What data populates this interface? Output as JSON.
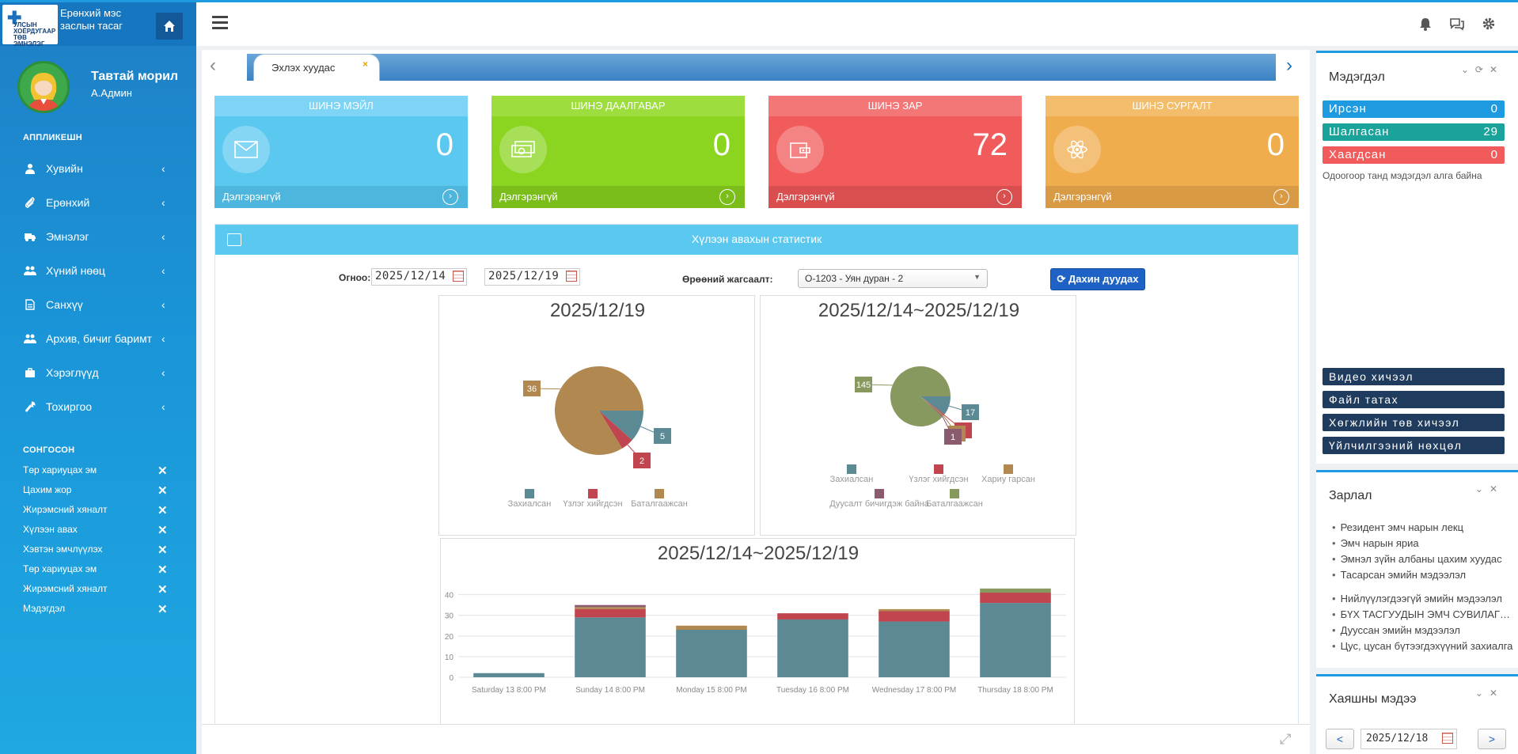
{
  "brand": {
    "title": "Ерөнхий мэс заслын тасаг",
    "logo_text": "УЛСЫН ХОЁРДУГААР ТӨВ ЭМНЭЛЭГ"
  },
  "user": {
    "welcome": "Тавтай морил",
    "name": "А.Админ"
  },
  "sidebar": {
    "section_title": "АППЛИКЕШН",
    "items": [
      {
        "label": "Хувийн",
        "icon": "user-icon"
      },
      {
        "label": "Ерөнхий",
        "icon": "paperclip-icon"
      },
      {
        "label": "Эмнэлэг",
        "icon": "ambulance-icon"
      },
      {
        "label": "Хүний нөөц",
        "icon": "users-icon"
      },
      {
        "label": "Санхүү",
        "icon": "document-icon"
      },
      {
        "label": "Архив, бичиг баримт",
        "icon": "users-icon"
      },
      {
        "label": "Хэрэглүүд",
        "icon": "briefcase-icon"
      },
      {
        "label": "Тохиргоо",
        "icon": "wrench-icon"
      }
    ],
    "favorites_title": "СОНГОСОН",
    "favorites": [
      "Төр хариуцах эм",
      "Цахим жор",
      "Жирэмсний хяналт",
      "Хүлээн авах",
      "Хэвтэн эмчлүүлэх",
      "Төр хариуцах эм",
      "Жирэмсний хяналт",
      "Мэдэгдэл"
    ]
  },
  "tabs": {
    "home_label": "Эхлэх хуудас",
    "close": "×"
  },
  "cards": [
    {
      "title": "ШИНЭ МЭЙЛ",
      "value": "0",
      "footer": "Дэлгэрэнгүй",
      "color": "#5bc8f0",
      "head": "#7dd4f4",
      "foot": "#4eb6dd",
      "icon": "envelope-icon"
    },
    {
      "title": "ШИНЭ ДААЛГАВАР",
      "value": "0",
      "footer": "Дэлгэрэнгүй",
      "color": "#8bd420",
      "head": "#9ddd3e",
      "foot": "#7bbd1b",
      "icon": "money-icon"
    },
    {
      "title": "ШИНЭ ЗАР",
      "value": "72",
      "footer": "Дэлгэрэнгүй",
      "color": "#f15b5b",
      "head": "#f47777",
      "foot": "#d94f4f",
      "icon": "wallet-icon"
    },
    {
      "title": "ШИНЭ СУРГАЛТ",
      "value": "0",
      "footer": "Дэлгэрэнгүй",
      "color": "#f0ad4e",
      "head": "#f3bd6b",
      "foot": "#d99a45",
      "icon": "atom-icon"
    }
  ],
  "stats": {
    "title": "Хүлээн авахын статистик",
    "date_label": "Огноо:",
    "date_from": "2025/12/14",
    "date_to": "2025/12/19",
    "dept_label": "Өрөөний жагсаалт:",
    "dept_value": "О-1203 - Уян дуран - 2",
    "reload_label": "Дахин дуудах"
  },
  "chart_data": [
    {
      "type": "pie",
      "title": "2025/12/19",
      "labels": [
        "Захиалсан",
        "Үзлэг хийгдсэн",
        "Баталгаажсан"
      ],
      "values": [
        5,
        2,
        36
      ],
      "colors": [
        "#5b8a94",
        "#c0454e",
        "#b08850"
      ]
    },
    {
      "type": "pie",
      "title": "2025/12/14~2025/12/19",
      "labels": [
        "Захиалсан",
        "Үзлэг хийгдсэн",
        "Хариу гарсан",
        "Дуусалт бичигдэж байна",
        "Баталгаажсан"
      ],
      "values": [
        17,
        1,
        1,
        1,
        145
      ],
      "colors": [
        "#5b8a94",
        "#c0454e",
        "#b08850",
        "#8a5a6e",
        "#87995e"
      ]
    },
    {
      "type": "bar",
      "stacked": true,
      "title": "2025/12/14~2025/12/19",
      "categories": [
        "Saturday 13 8:00 PM",
        "Sunday 14 8:00 PM",
        "Monday 15 8:00 PM",
        "Tuesday 16 8:00 PM",
        "Wednesday 17 8:00 PM",
        "Thursday 18 8:00 PM"
      ],
      "yticks": [
        0,
        10,
        20,
        30,
        40
      ],
      "ylim": [
        0,
        46
      ],
      "series": [
        {
          "values": [
            2,
            29,
            23,
            28,
            27,
            36
          ],
          "color": "#5b8a94"
        },
        {
          "values": [
            0,
            4,
            0,
            3,
            5,
            5
          ],
          "color": "#c0454e"
        },
        {
          "values": [
            0,
            1,
            2,
            0,
            1,
            0
          ],
          "color": "#b08850"
        },
        {
          "values": [
            0,
            1,
            0,
            0,
            0,
            0
          ],
          "color": "#8a5a6e"
        },
        {
          "values": [
            0,
            0,
            0,
            0,
            0,
            2
          ],
          "color": "#87995e"
        }
      ]
    }
  ],
  "notifications": {
    "title": "Мэдэгдэл",
    "items": [
      {
        "label": "Ирсэн",
        "value": "0",
        "color": "#1e9be0"
      },
      {
        "label": "Шалгасан",
        "value": "29",
        "color": "#19a39a"
      },
      {
        "label": "Хаагдсан",
        "value": "0",
        "color": "#f15b5b"
      }
    ],
    "empty_text": "Одоогоор танд мэдэгдэл алга байна",
    "links": [
      "Видео хичээл",
      "Файл татах",
      "Хөгжлийн төв хичээл",
      "Үйлчилгээний нөхцөл"
    ]
  },
  "announcements": {
    "title": "Зарлал",
    "items": [
      "Резидент эмч нарын лекц",
      "Эмч нарын яриа",
      "Эмнэл зүйн албаны цахим хуудас",
      "Тасарсан эмийн мэдээлэл",
      "Нийлүүлэгдээгүй эмийн мэдээлэл",
      "БҮХ ТАСГУУДЫН ЭМЧ СУВИЛАГЧ НАРЫН",
      "Дууссан эмийн мэдээлэл",
      "Цус, цусан бүтээгдэхүүний захиалга"
    ]
  },
  "weather": {
    "title": "Хаяшны мэдээ",
    "date": "2025/12/18",
    "prev": "<",
    "next": ">"
  }
}
